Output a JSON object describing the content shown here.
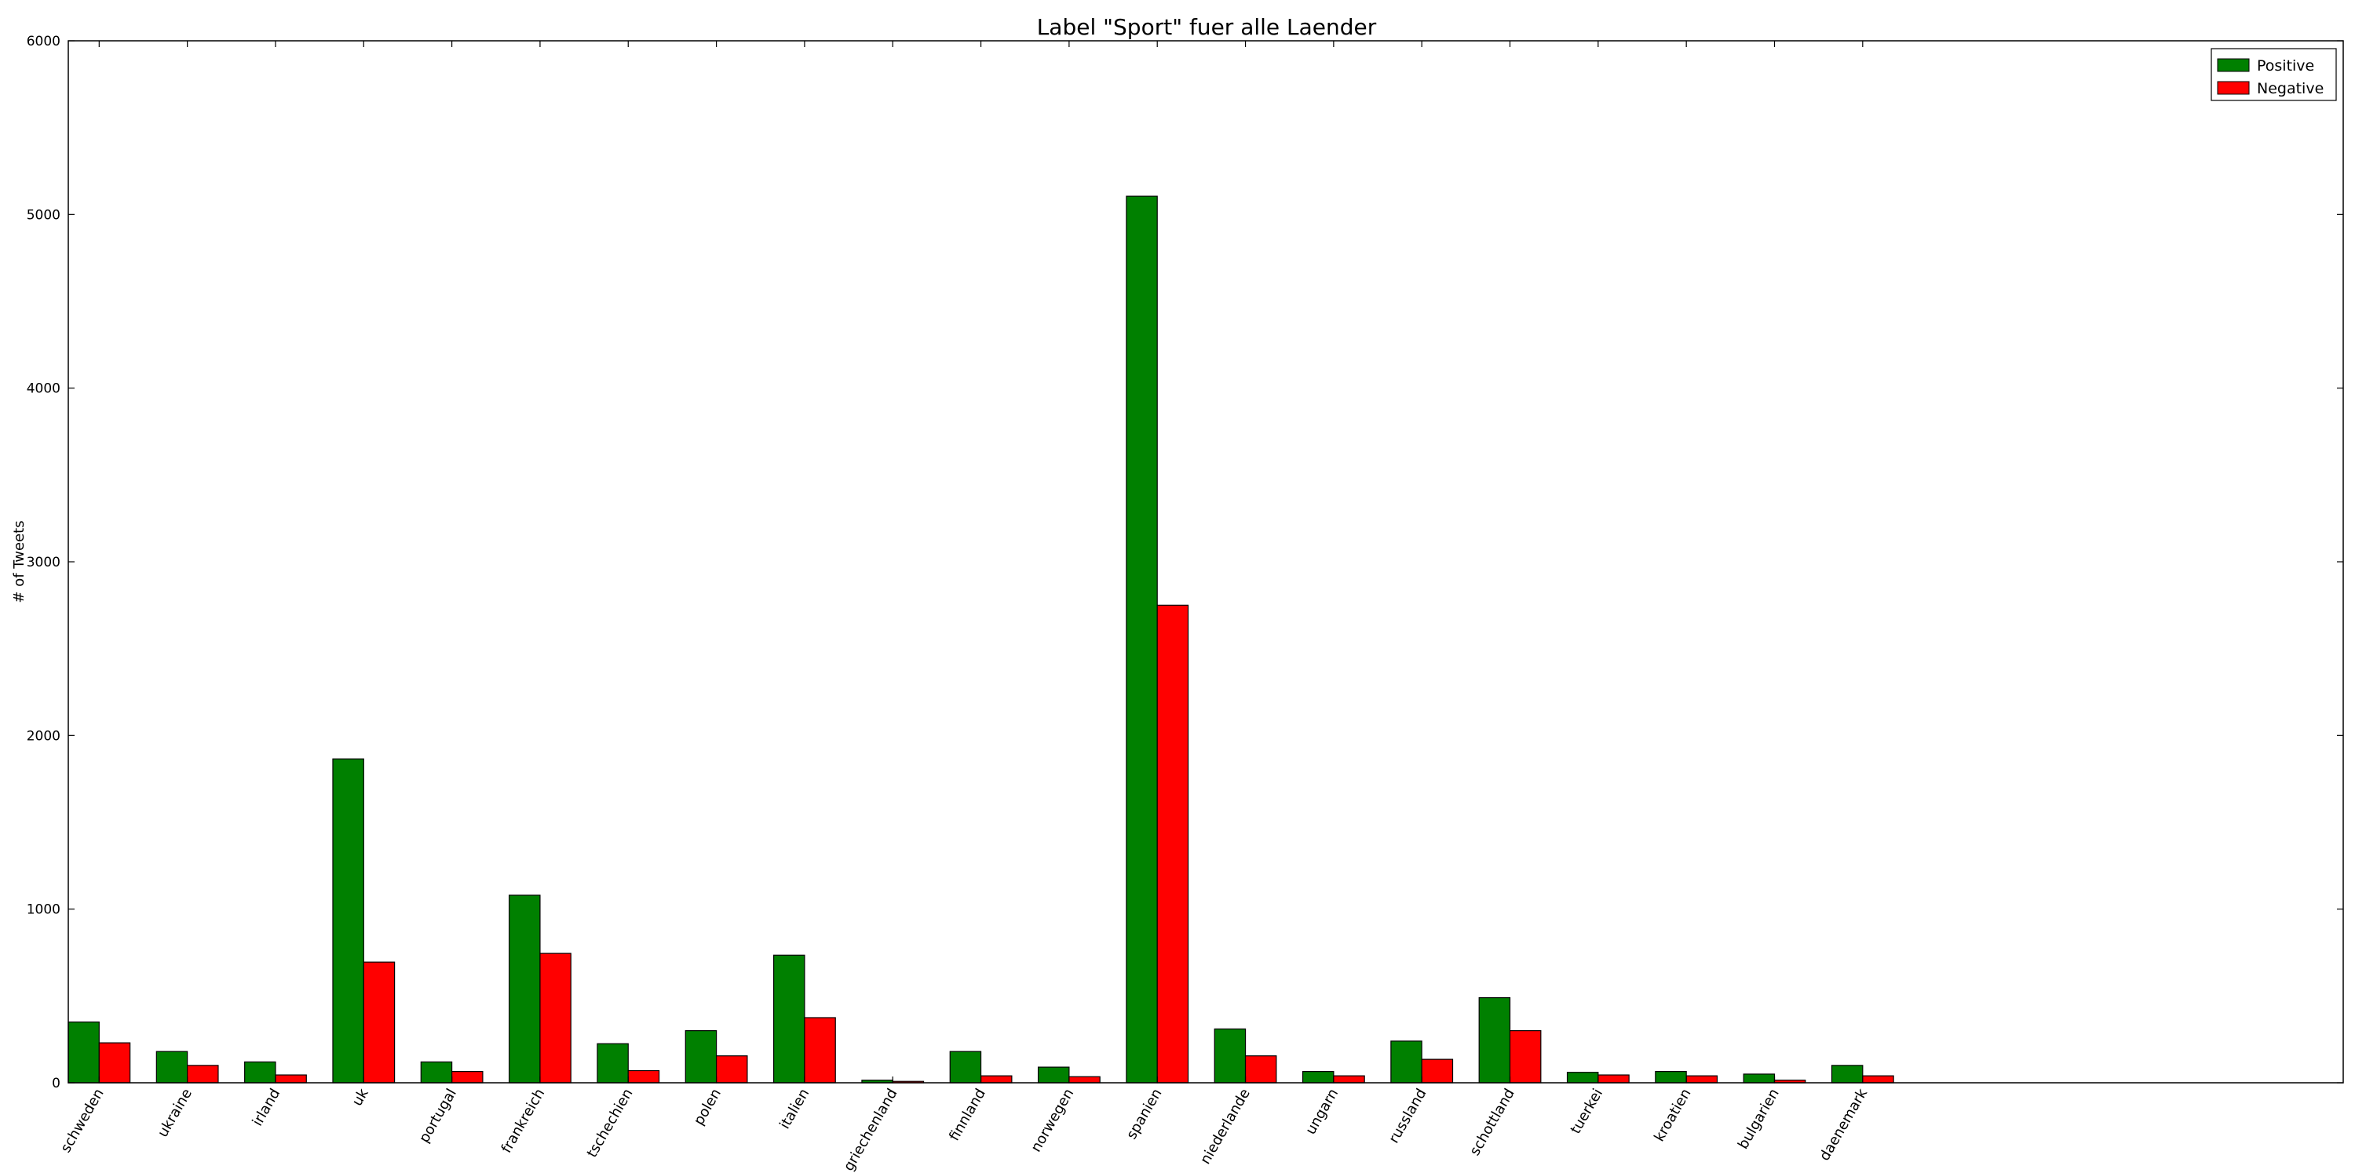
{
  "chart_data": {
    "type": "bar",
    "title": "Label \"Sport\" fuer alle Laender",
    "xlabel": "",
    "ylabel": "# of Tweets",
    "ylim": [
      0,
      6000
    ],
    "yticks": [
      "0",
      "1000",
      "2000",
      "3000",
      "4000",
      "5000",
      "6000"
    ],
    "xlim": [
      0,
      25.8
    ],
    "grid": false,
    "legend_position": "top-right",
    "categories": [
      "schweden",
      "ukraine",
      "irland",
      "uk",
      "portugal",
      "frankreich",
      "tschechien",
      "polen",
      "italien",
      "griechenland",
      "finnland",
      "norwegen",
      "spanien",
      "niederlande",
      "ungarn",
      "russland",
      "schottland",
      "tuerkei",
      "kroatien",
      "bulgarien",
      "daenemark"
    ],
    "series": [
      {
        "name": "Positive",
        "color": "#008000",
        "values": [
          350,
          180,
          120,
          1865,
          120,
          1080,
          225,
          300,
          735,
          15,
          180,
          90,
          5105,
          310,
          65,
          240,
          490,
          60,
          65,
          50,
          100
        ]
      },
      {
        "name": "Negative",
        "color": "#ff0000",
        "values": [
          230,
          100,
          45,
          695,
          65,
          745,
          70,
          155,
          375,
          8,
          40,
          35,
          2750,
          155,
          40,
          135,
          300,
          45,
          40,
          15,
          40
        ]
      }
    ]
  }
}
